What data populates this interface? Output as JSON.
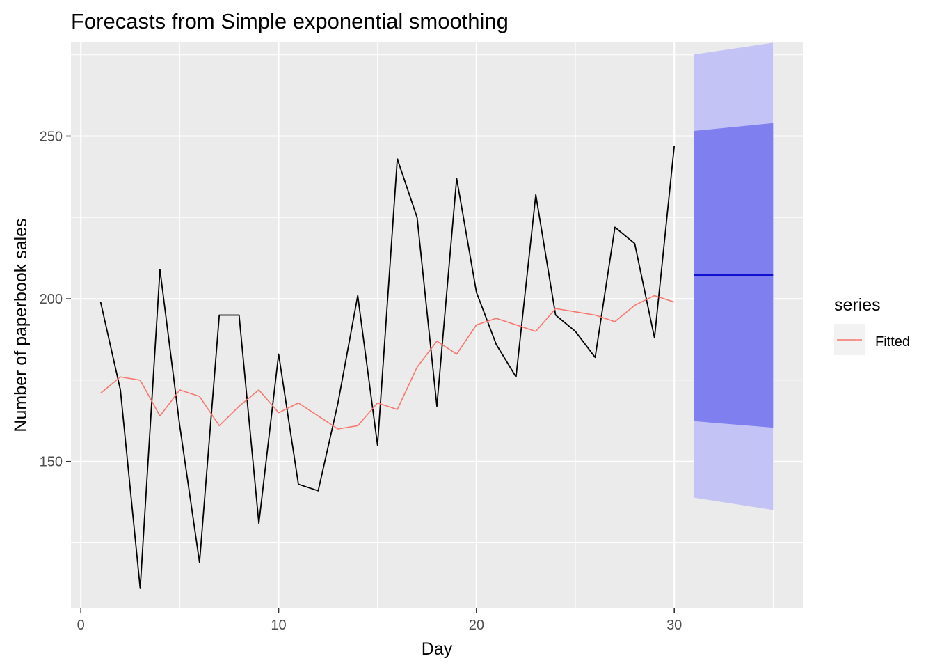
{
  "chart_data": {
    "type": "line",
    "title": "Forecasts from Simple exponential smoothing",
    "xlabel": "Day",
    "ylabel": "Number of paperbook sales",
    "xlim": [
      -0.5,
      36.5
    ],
    "ylim": [
      105,
      279
    ],
    "x_ticks": [
      0,
      10,
      20,
      30
    ],
    "y_ticks": [
      150,
      200,
      250
    ],
    "x_minor": [
      5,
      15,
      25,
      35
    ],
    "y_minor": [
      125,
      175,
      225,
      275
    ],
    "grid": true,
    "legend_position": "right",
    "legend_title": "series",
    "colors": {
      "panel": "#EBEBEB",
      "grid": "#FFFFFF",
      "observed": "#000000",
      "fitted": "#F8766D",
      "point_forecast": "#0000CC",
      "interval_80": "#7F7FEF",
      "interval_95": "#C3C3F6",
      "axis_text": "#4D4D4D"
    },
    "series": [
      {
        "role": "observed",
        "x": [
          1,
          2,
          3,
          4,
          5,
          6,
          7,
          8,
          9,
          10,
          11,
          12,
          13,
          14,
          15,
          16,
          17,
          18,
          19,
          20,
          21,
          22,
          23,
          24,
          25,
          26,
          27,
          28,
          29,
          30
        ],
        "values": [
          199,
          172,
          111,
          209,
          161,
          119,
          195,
          195,
          131,
          183,
          143,
          141,
          168,
          201,
          155,
          243,
          225,
          167,
          237,
          202,
          186,
          176,
          232,
          195,
          190,
          182,
          222,
          217,
          188,
          247
        ]
      },
      {
        "name": "Fitted",
        "role": "fitted",
        "x": [
          1,
          2,
          3,
          4,
          5,
          6,
          7,
          8,
          9,
          10,
          11,
          12,
          13,
          14,
          15,
          16,
          17,
          18,
          19,
          20,
          21,
          22,
          23,
          24,
          25,
          26,
          27,
          28,
          29,
          30
        ],
        "values": [
          171,
          176,
          175,
          164,
          172,
          170,
          161,
          167,
          172,
          165,
          168,
          164,
          160,
          161,
          168,
          166,
          179,
          187,
          183,
          192,
          194,
          192,
          190,
          197,
          196,
          195,
          193,
          198,
          201,
          199
        ]
      }
    ],
    "forecast": {
      "x": [
        31,
        35
      ],
      "mean": [
        207.3,
        207.3
      ],
      "lo80": [
        162.4,
        160.4
      ],
      "hi80": [
        251.6,
        254.0
      ],
      "lo95": [
        138.9,
        135.1
      ],
      "hi95": [
        275.1,
        278.7
      ]
    }
  }
}
